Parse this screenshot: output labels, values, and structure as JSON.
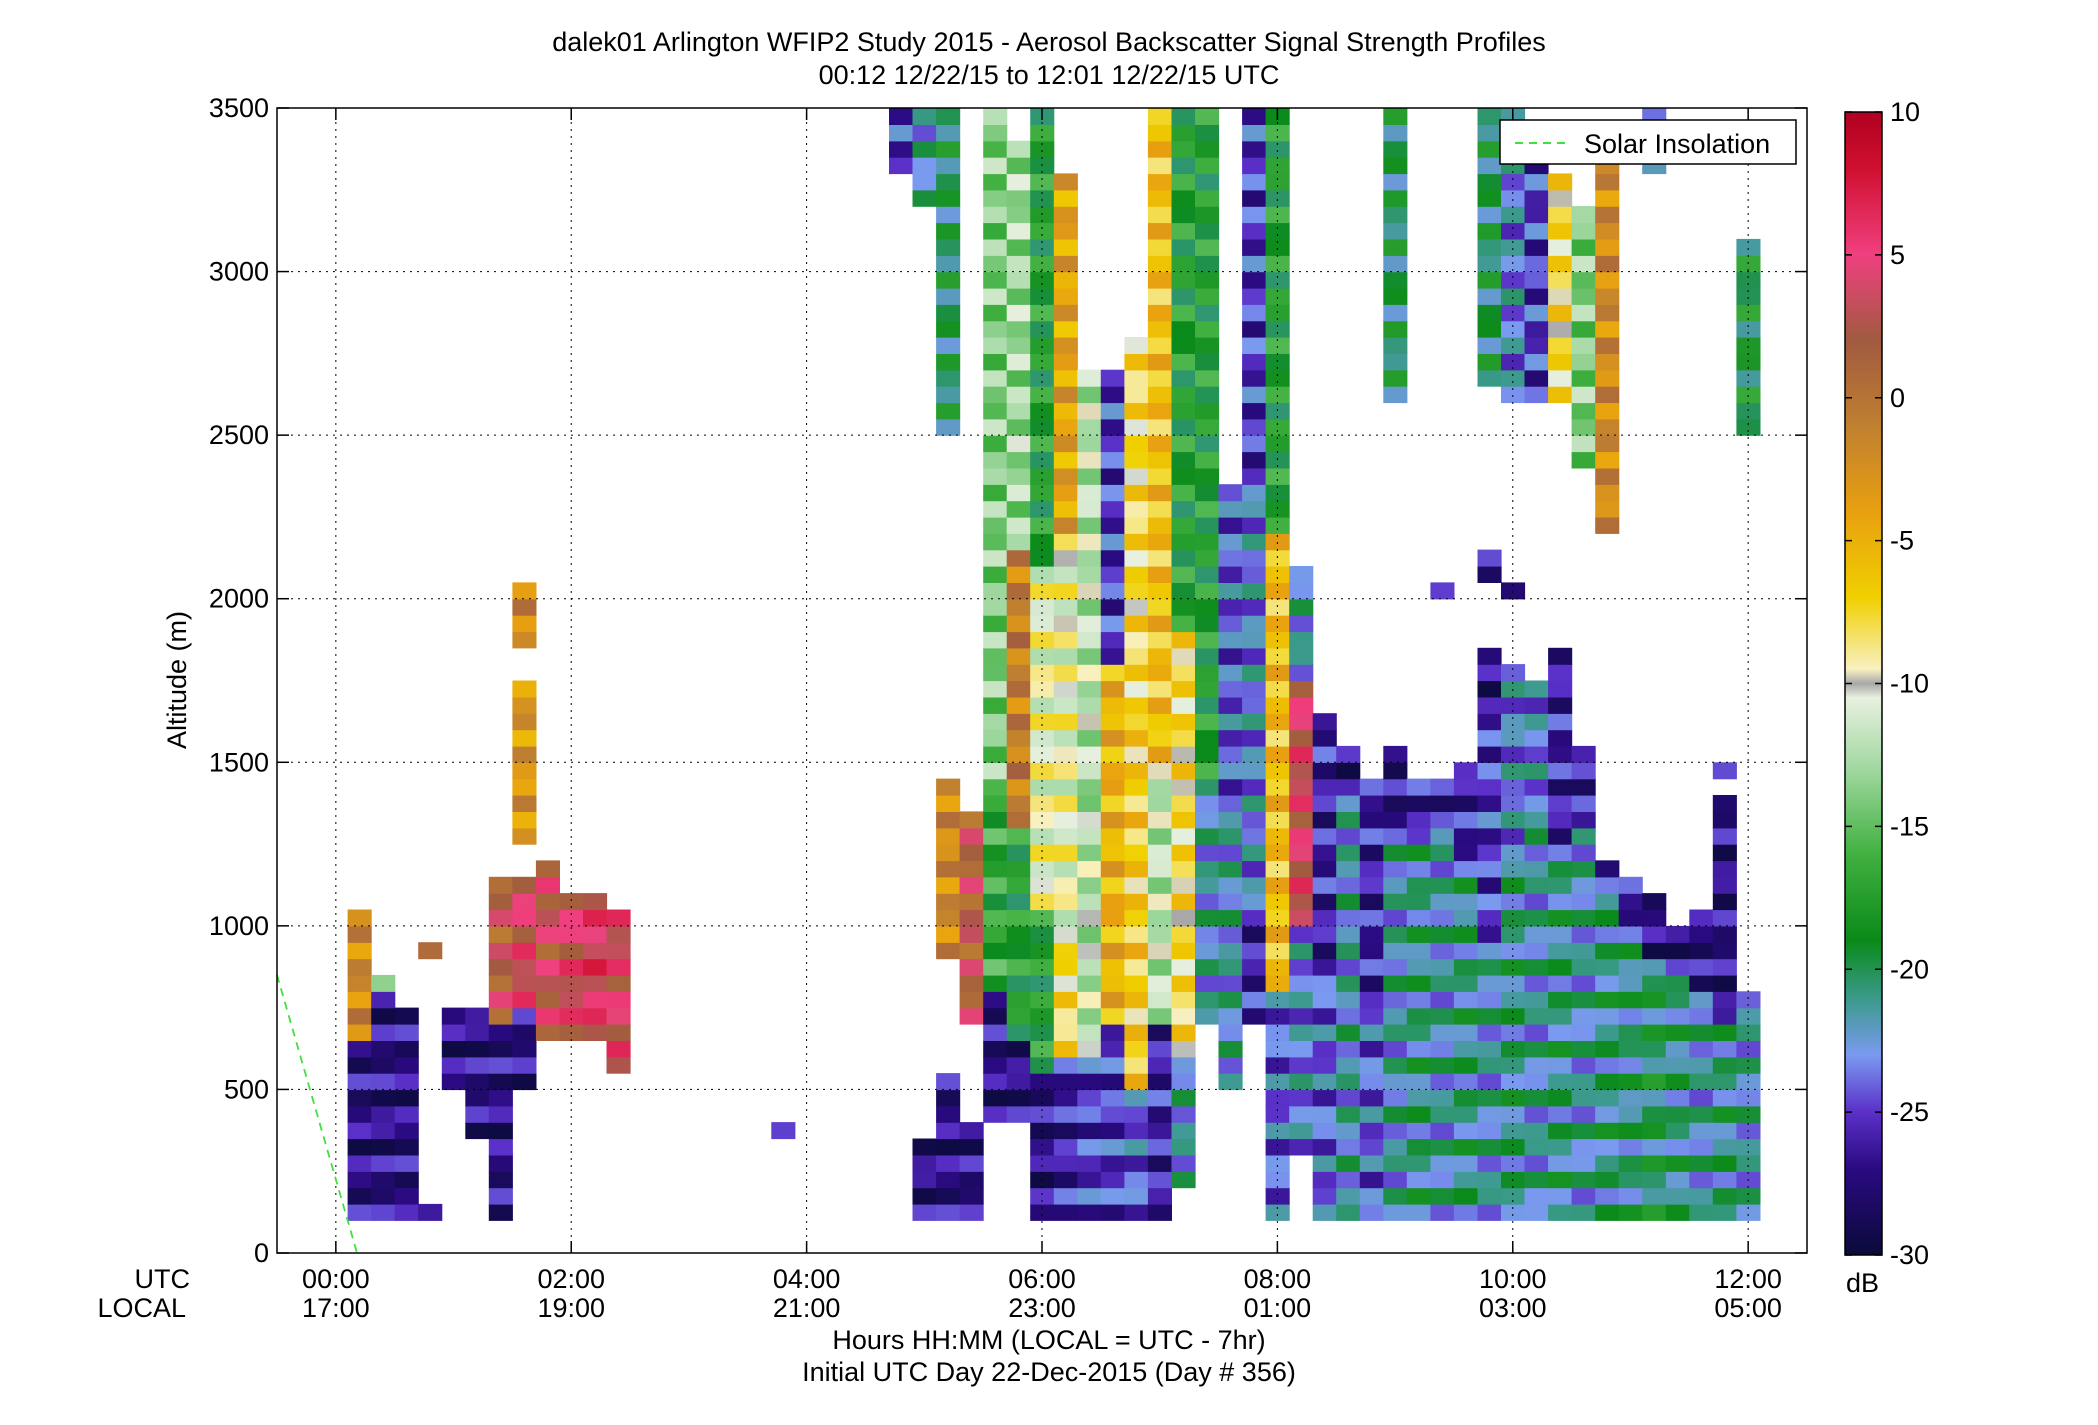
{
  "chart_data": {
    "type": "heatmap",
    "title": "dalek01 Arlington WFIP2 Study 2015 - Aerosol Backscatter Signal Strength Profiles",
    "subtitle": "00:12 12/22/15 to 12:01 12/22/15  UTC",
    "xlabel": "Hours HH:MM  (LOCAL = UTC - 7hr)",
    "xlabel2": "Initial UTC Day 22-Dec-2015 (Day # 356)",
    "ylabel": "Altitude (m)",
    "xlim": [
      -0.5,
      12.5
    ],
    "ylim": [
      0,
      3500
    ],
    "grid": true,
    "x_row_labels": [
      "UTC",
      "LOCAL"
    ],
    "x_ticks": [
      {
        "x": 0,
        "utc": "00:00",
        "local": "17:00"
      },
      {
        "x": 2,
        "utc": "02:00",
        "local": "19:00"
      },
      {
        "x": 4,
        "utc": "04:00",
        "local": "21:00"
      },
      {
        "x": 6,
        "utc": "06:00",
        "local": "23:00"
      },
      {
        "x": 8,
        "utc": "08:00",
        "local": "01:00"
      },
      {
        "x": 10,
        "utc": "10:00",
        "local": "03:00"
      },
      {
        "x": 12,
        "utc": "12:00",
        "local": "05:00"
      }
    ],
    "y_ticks": [
      0,
      500,
      1000,
      1500,
      2000,
      2500,
      3000,
      3500
    ],
    "y_tick_labels": [
      "0",
      "500",
      "1000",
      "1500",
      "2000",
      "2500",
      "3000",
      "3500"
    ],
    "colorbar": {
      "label": "dB",
      "range": [
        -30,
        10
      ],
      "ticks": [
        10,
        5,
        0,
        -5,
        -10,
        -15,
        -20,
        -25,
        -30
      ],
      "tick_labels": [
        "10",
        "5",
        "0",
        "-5",
        "-10",
        "-15",
        "-20",
        "-25",
        "-30"
      ],
      "colormap": [
        {
          "v": -30,
          "c": "#0a0a3a"
        },
        {
          "v": -27,
          "c": "#2a0a80"
        },
        {
          "v": -25,
          "c": "#5a30c8"
        },
        {
          "v": -23,
          "c": "#7a9af0"
        },
        {
          "v": -21,
          "c": "#3a9a8a"
        },
        {
          "v": -19,
          "c": "#0a8a1a"
        },
        {
          "v": -16,
          "c": "#40b040"
        },
        {
          "v": -13,
          "c": "#a0d8a0"
        },
        {
          "v": -10.5,
          "c": "#e8f0e0"
        },
        {
          "v": -10,
          "c": "#a8a8a8"
        },
        {
          "v": -9.5,
          "c": "#f8f0c0"
        },
        {
          "v": -7,
          "c": "#f0d000"
        },
        {
          "v": -4,
          "c": "#e8a010"
        },
        {
          "v": -1,
          "c": "#c08030"
        },
        {
          "v": 2,
          "c": "#a05a40"
        },
        {
          "v": 5,
          "c": "#f04080"
        },
        {
          "v": 8,
          "c": "#d01030"
        },
        {
          "v": 10,
          "c": "#b00020"
        }
      ]
    },
    "legend": {
      "entries": [
        {
          "name": "Solar Insolation",
          "color": "#40e040",
          "style": "dashed"
        }
      ],
      "placement": "top-right"
    },
    "solar_insolation": {
      "x": [
        -0.5,
        0.18
      ],
      "y": [
        850,
        0
      ]
    },
    "bin_width_hours": 0.2,
    "bin_height_m": 50,
    "columns": [
      {
        "x": 0.2,
        "segs": [
          [
            100,
            650,
            -27
          ],
          [
            650,
            1050,
            -2
          ]
        ]
      },
      {
        "x": 0.4,
        "segs": [
          [
            100,
            800,
            -27
          ],
          [
            800,
            850,
            -13
          ]
        ]
      },
      {
        "x": 0.6,
        "segs": [
          [
            100,
            750,
            -27
          ]
        ]
      },
      {
        "x": 0.8,
        "segs": [
          [
            100,
            150,
            -27
          ],
          [
            900,
            950,
            2
          ]
        ]
      },
      {
        "x": 1.0,
        "segs": [
          [
            500,
            750,
            -27
          ]
        ]
      },
      {
        "x": 1.2,
        "segs": [
          [
            350,
            750,
            -27
          ]
        ]
      },
      {
        "x": 1.4,
        "segs": [
          [
            100,
            700,
            -27
          ],
          [
            700,
            1150,
            2
          ]
        ]
      },
      {
        "x": 1.6,
        "segs": [
          [
            500,
            750,
            -27
          ],
          [
            750,
            1150,
            4
          ],
          [
            1250,
            1750,
            -3
          ],
          [
            1850,
            2050,
            -2
          ]
        ]
      },
      {
        "x": 1.8,
        "segs": [
          [
            650,
            1200,
            3
          ]
        ]
      },
      {
        "x": 2.0,
        "segs": [
          [
            650,
            1100,
            4
          ]
        ]
      },
      {
        "x": 2.2,
        "segs": [
          [
            650,
            1100,
            5
          ]
        ]
      },
      {
        "x": 2.4,
        "segs": [
          [
            550,
            1050,
            4
          ]
        ]
      },
      {
        "x": 3.8,
        "segs": [
          [
            350,
            400,
            -27
          ]
        ]
      },
      {
        "x": 4.8,
        "segs": [
          [
            3300,
            3500,
            -25
          ]
        ]
      },
      {
        "x": 5.0,
        "segs": [
          [
            100,
            350,
            -27
          ],
          [
            3200,
            3500,
            -22
          ]
        ]
      },
      {
        "x": 5.2,
        "segs": [
          [
            100,
            550,
            -27
          ],
          [
            2500,
            3500,
            -20
          ],
          [
            900,
            1450,
            -2
          ]
        ]
      },
      {
        "x": 5.4,
        "segs": [
          [
            100,
            400,
            -27
          ],
          [
            700,
            1350,
            2
          ]
        ]
      },
      {
        "x": 5.6,
        "segs": [
          [
            400,
            800,
            -27
          ],
          [
            800,
            1450,
            -17
          ],
          [
            1450,
            3500,
            -14
          ]
        ]
      },
      {
        "x": 5.8,
        "segs": [
          [
            400,
            650,
            -27
          ],
          [
            650,
            1300,
            -18
          ],
          [
            1300,
            2150,
            -1
          ],
          [
            2150,
            3400,
            -13
          ]
        ]
      },
      {
        "x": 6.0,
        "segs": [
          [
            100,
            550,
            -27
          ],
          [
            550,
            1050,
            -18
          ],
          [
            1050,
            2100,
            -10
          ],
          [
            2100,
            3500,
            -18
          ]
        ]
      },
      {
        "x": 6.2,
        "segs": [
          [
            100,
            600,
            -26
          ],
          [
            600,
            1000,
            -8
          ],
          [
            1000,
            2200,
            -10
          ],
          [
            2200,
            3300,
            -4
          ]
        ]
      },
      {
        "x": 6.4,
        "segs": [
          [
            100,
            600,
            -25
          ],
          [
            600,
            1400,
            -12
          ],
          [
            1400,
            2700,
            -12
          ]
        ]
      },
      {
        "x": 6.6,
        "segs": [
          [
            100,
            700,
            -25
          ],
          [
            700,
            1800,
            -5
          ],
          [
            1800,
            2700,
            -25
          ]
        ]
      },
      {
        "x": 6.8,
        "segs": [
          [
            100,
            500,
            -24
          ],
          [
            500,
            1600,
            -7
          ],
          [
            1600,
            2800,
            -8
          ]
        ]
      },
      {
        "x": 7.0,
        "segs": [
          [
            100,
            700,
            -26
          ],
          [
            700,
            1500,
            -12
          ],
          [
            1500,
            3500,
            -6
          ]
        ]
      },
      {
        "x": 7.2,
        "segs": [
          [
            200,
            600,
            -22
          ],
          [
            600,
            1900,
            -8
          ],
          [
            1900,
            3500,
            -18
          ]
        ]
      },
      {
        "x": 7.4,
        "segs": [
          [
            700,
            1400,
            -22
          ],
          [
            1400,
            3500,
            -18
          ]
        ]
      },
      {
        "x": 7.6,
        "segs": [
          [
            500,
            1400,
            -22
          ],
          [
            1400,
            2350,
            -24
          ]
        ]
      },
      {
        "x": 7.8,
        "segs": [
          [
            700,
            1000,
            -26
          ],
          [
            1000,
            2400,
            -23
          ],
          [
            2400,
            3500,
            -25
          ]
        ]
      },
      {
        "x": 8.0,
        "segs": [
          [
            100,
            800,
            -24
          ],
          [
            800,
            2200,
            -6
          ],
          [
            2200,
            3500,
            -18
          ]
        ]
      },
      {
        "x": 8.2,
        "segs": [
          [
            300,
            1000,
            -23
          ],
          [
            1000,
            1750,
            4
          ],
          [
            1750,
            2100,
            -22
          ]
        ]
      },
      {
        "x": 8.4,
        "segs": [
          [
            100,
            900,
            -24
          ],
          [
            900,
            1650,
            -26
          ]
        ]
      },
      {
        "x": 8.6,
        "segs": [
          [
            100,
            1400,
            -22
          ],
          [
            1400,
            1550,
            -27
          ]
        ]
      },
      {
        "x": 8.8,
        "segs": [
          [
            100,
            800,
            -24
          ],
          [
            800,
            1450,
            -26
          ]
        ]
      },
      {
        "x": 9.0,
        "segs": [
          [
            100,
            1300,
            -22
          ],
          [
            1300,
            1550,
            -27
          ],
          [
            2600,
            3500,
            -20
          ]
        ]
      },
      {
        "x": 9.2,
        "segs": [
          [
            100,
            1250,
            -21
          ],
          [
            1250,
            1450,
            -26
          ]
        ]
      },
      {
        "x": 9.4,
        "segs": [
          [
            100,
            1300,
            -22
          ],
          [
            1300,
            1450,
            -26
          ],
          [
            2000,
            2050,
            -27
          ]
        ]
      },
      {
        "x": 9.6,
        "segs": [
          [
            100,
            1200,
            -21
          ],
          [
            1200,
            1500,
            -26
          ]
        ]
      },
      {
        "x": 9.8,
        "segs": [
          [
            100,
            900,
            -22
          ],
          [
            900,
            1600,
            -25
          ],
          [
            1600,
            1850,
            -27
          ],
          [
            2050,
            2150,
            -27
          ],
          [
            2650,
            3500,
            -20
          ]
        ]
      },
      {
        "x": 10.0,
        "segs": [
          [
            100,
            1250,
            -21
          ],
          [
            1250,
            1800,
            -23
          ],
          [
            2000,
            2050,
            -27
          ],
          [
            2600,
            3500,
            -23
          ]
        ]
      },
      {
        "x": 10.2,
        "segs": [
          [
            100,
            1300,
            -22
          ],
          [
            1300,
            1750,
            -23
          ],
          [
            2600,
            3400,
            -25
          ]
        ]
      },
      {
        "x": 10.4,
        "segs": [
          [
            100,
            1200,
            -21
          ],
          [
            1200,
            1850,
            -26
          ],
          [
            2600,
            3300,
            -8
          ]
        ]
      },
      {
        "x": 10.6,
        "segs": [
          [
            100,
            1300,
            -22
          ],
          [
            1300,
            1550,
            -26
          ],
          [
            2400,
            3200,
            -14
          ]
        ]
      },
      {
        "x": 10.8,
        "segs": [
          [
            100,
            1200,
            -21
          ],
          [
            1200,
            1100,
            -25
          ],
          [
            2200,
            3400,
            -2
          ]
        ]
      },
      {
        "x": 11.0,
        "segs": [
          [
            100,
            1000,
            -21
          ],
          [
            1000,
            1150,
            -26
          ]
        ]
      },
      {
        "x": 11.2,
        "segs": [
          [
            100,
            900,
            -20
          ],
          [
            900,
            1100,
            -27
          ],
          [
            3300,
            3500,
            -24
          ]
        ]
      },
      {
        "x": 11.4,
        "segs": [
          [
            100,
            850,
            -21
          ],
          [
            850,
            1000,
            -27
          ]
        ]
      },
      {
        "x": 11.6,
        "segs": [
          [
            100,
            800,
            -22
          ],
          [
            800,
            1050,
            -27
          ]
        ]
      },
      {
        "x": 11.8,
        "segs": [
          [
            100,
            700,
            -21
          ],
          [
            700,
            1400,
            -27
          ],
          [
            1450,
            1500,
            -27
          ]
        ]
      },
      {
        "x": 12.0,
        "segs": [
          [
            100,
            800,
            -22
          ],
          [
            2500,
            3100,
            -19
          ]
        ]
      }
    ]
  }
}
